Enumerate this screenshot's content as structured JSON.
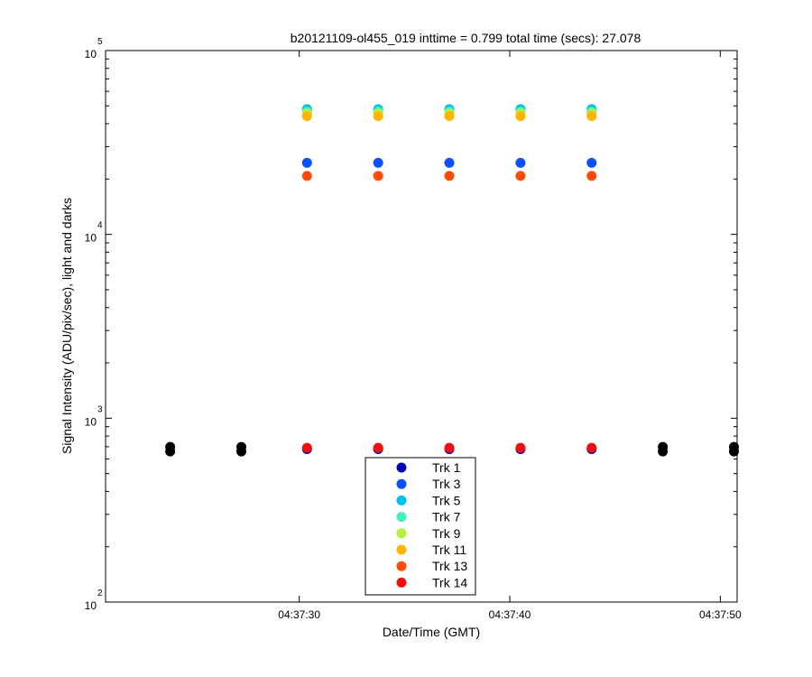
{
  "chart_data": {
    "type": "scatter",
    "title": "b20121109-ol455_019 inttime = 0.799 total time (secs): 27.078",
    "xlabel": "Date/Time (GMT)",
    "ylabel": "Signal Intensity (ADU/pix/sec), light and darks",
    "yscale": "log",
    "ylim": [
      100,
      100000
    ],
    "xlim": [
      20.8,
      50.8
    ],
    "x_unit": "seconds after 04:37:00",
    "x_ticks": [
      {
        "value": 30,
        "label": "04:37:30"
      },
      {
        "value": 40,
        "label": "04:37:40"
      },
      {
        "value": 50,
        "label": "04:37:50"
      }
    ],
    "y_ticks": [
      {
        "value": 100,
        "base": "10",
        "exp": "2"
      },
      {
        "value": 1000,
        "base": "10",
        "exp": "3"
      },
      {
        "value": 10000,
        "base": "10",
        "exp": "4"
      },
      {
        "value": 100000,
        "base": "10",
        "exp": "5"
      }
    ],
    "light_x": [
      30.37,
      33.75,
      37.13,
      40.51,
      43.89
    ],
    "series": [
      {
        "name": "Trk 1",
        "color": "#0000b4",
        "values": [
          680,
          680,
          680,
          680,
          680
        ]
      },
      {
        "name": "Trk 3",
        "color": "#0a50ff",
        "values": [
          24500,
          24500,
          24500,
          24500,
          24500
        ]
      },
      {
        "name": "Trk 5",
        "color": "#00c0f0",
        "values": [
          48000,
          48000,
          48000,
          48000,
          48000
        ]
      },
      {
        "name": "Trk 7",
        "color": "#40f0c0",
        "values": [
          46500,
          46500,
          46500,
          46500,
          46500
        ]
      },
      {
        "name": "Trk 9",
        "color": "#b4f040",
        "values": [
          45500,
          45500,
          45500,
          45500,
          45500
        ]
      },
      {
        "name": "Trk 11",
        "color": "#ffb400",
        "values": [
          44000,
          44000,
          44000,
          44000,
          44000
        ]
      },
      {
        "name": "Trk 13",
        "color": "#ff4a0a",
        "values": [
          20800,
          20800,
          20800,
          20800,
          20800
        ]
      },
      {
        "name": "Trk 14",
        "color": "#ee1010",
        "values": [
          690,
          690,
          690,
          690,
          690
        ]
      }
    ],
    "darks": {
      "color": "#000000",
      "x": [
        23.87,
        27.25,
        47.27,
        50.65
      ],
      "values": [
        675,
        675,
        675,
        675
      ]
    },
    "legend_position": "bottom-center"
  }
}
